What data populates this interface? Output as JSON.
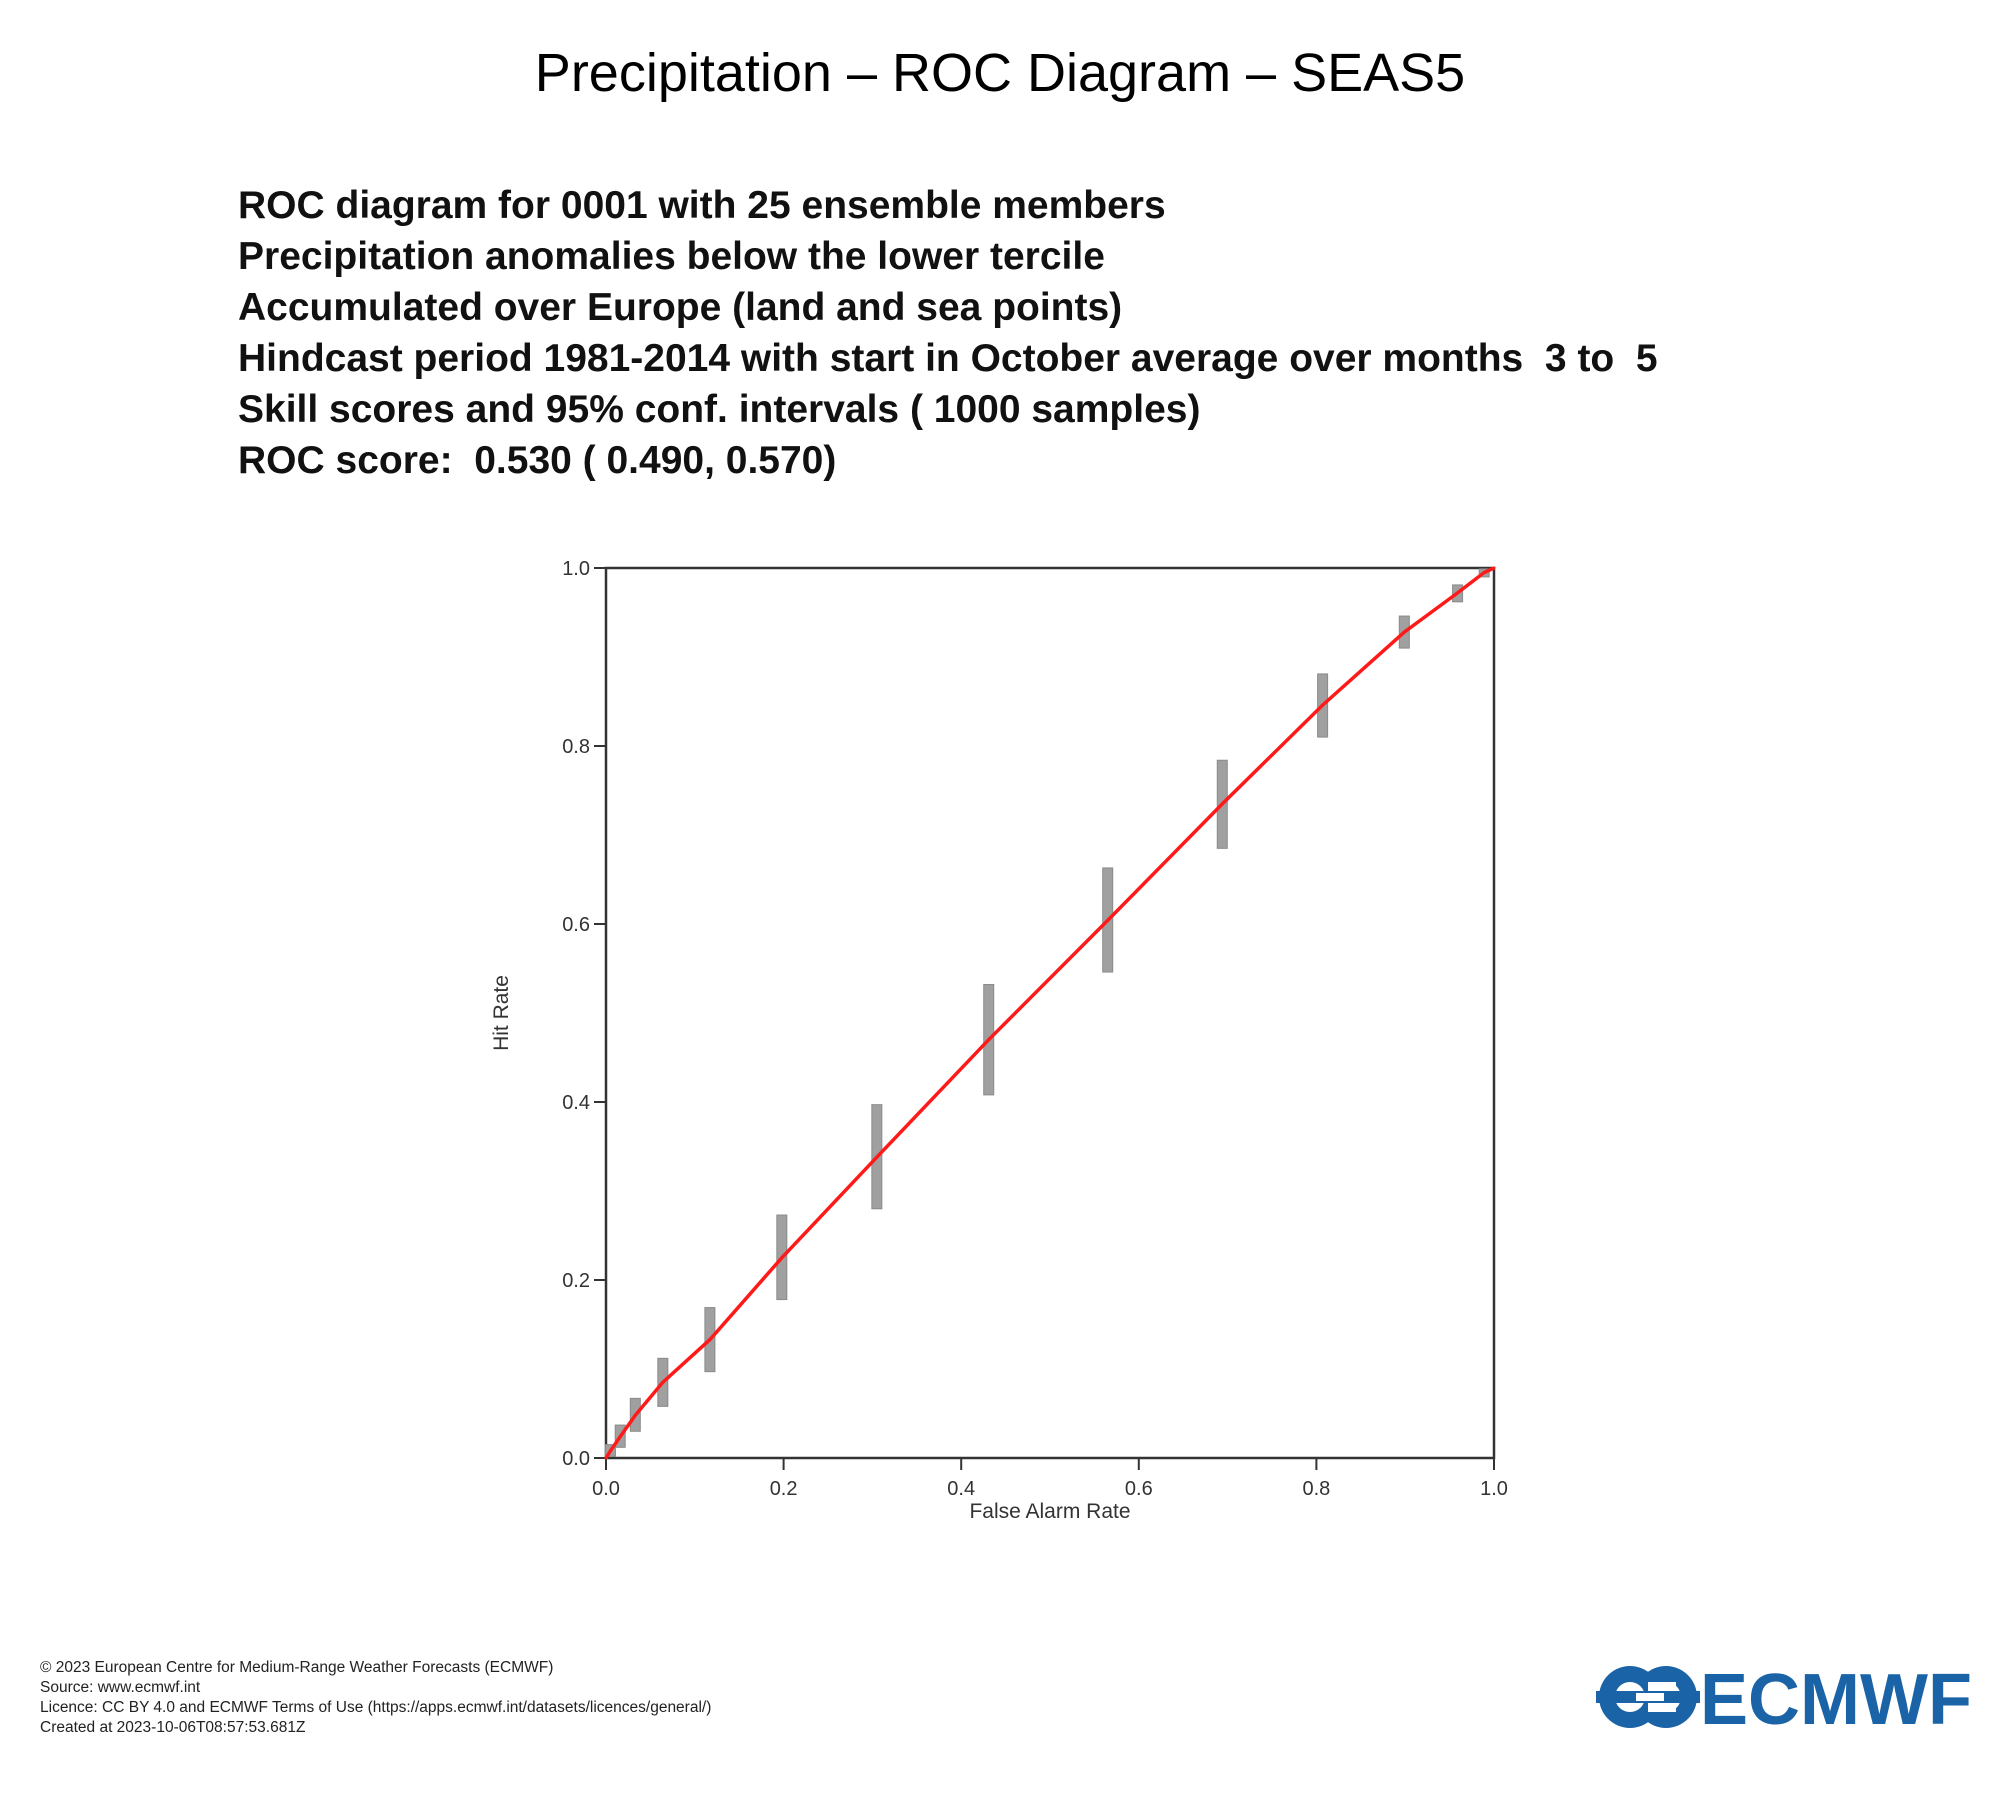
{
  "title": "Precipitation – ROC Diagram – SEAS5",
  "info_lines": [
    "ROC diagram for 0001 with 25 ensemble members",
    "Precipitation anomalies below the lower tercile",
    "Accumulated over Europe (land and sea points)",
    "Hindcast period 1981-2014 with start in October average over months  3 to  5",
    "Skill scores and 95% conf. intervals ( 1000 samples)",
    "ROC score:  0.530 ( 0.490, 0.570)"
  ],
  "chart_data": {
    "type": "line",
    "xlabel": "False Alarm Rate",
    "ylabel": "Hit Rate",
    "xlim": [
      0,
      1
    ],
    "ylim": [
      0,
      1
    ],
    "x_ticks": [
      "0.0",
      "0.2",
      "0.4",
      "0.6",
      "0.8",
      "1.0"
    ],
    "y_ticks": [
      "0.0",
      "0.2",
      "0.4",
      "0.6",
      "0.8",
      "1.0"
    ],
    "grid": false,
    "line_color": "#ff1a1a",
    "errorbar_color": "#a0a0a0",
    "points": [
      {
        "x": 0.0,
        "y": 0.0,
        "y_low": 0.0,
        "y_high": 0.0
      },
      {
        "x": 0.005,
        "y": 0.008,
        "y_low": 0.002,
        "y_high": 0.015
      },
      {
        "x": 0.016,
        "y": 0.024,
        "y_low": 0.012,
        "y_high": 0.037
      },
      {
        "x": 0.033,
        "y": 0.048,
        "y_low": 0.03,
        "y_high": 0.067
      },
      {
        "x": 0.064,
        "y": 0.085,
        "y_low": 0.058,
        "y_high": 0.112
      },
      {
        "x": 0.117,
        "y": 0.133,
        "y_low": 0.097,
        "y_high": 0.169
      },
      {
        "x": 0.198,
        "y": 0.225,
        "y_low": 0.178,
        "y_high": 0.273
      },
      {
        "x": 0.305,
        "y": 0.338,
        "y_low": 0.28,
        "y_high": 0.397
      },
      {
        "x": 0.431,
        "y": 0.47,
        "y_low": 0.408,
        "y_high": 0.532
      },
      {
        "x": 0.565,
        "y": 0.604,
        "y_low": 0.546,
        "y_high": 0.663
      },
      {
        "x": 0.694,
        "y": 0.735,
        "y_low": 0.685,
        "y_high": 0.784
      },
      {
        "x": 0.807,
        "y": 0.846,
        "y_low": 0.81,
        "y_high": 0.881
      },
      {
        "x": 0.899,
        "y": 0.928,
        "y_low": 0.91,
        "y_high": 0.946
      },
      {
        "x": 0.959,
        "y": 0.972,
        "y_low": 0.962,
        "y_high": 0.981
      },
      {
        "x": 0.989,
        "y": 0.995,
        "y_low": 0.99,
        "y_high": 0.999
      },
      {
        "x": 1.0,
        "y": 1.0,
        "y_low": 1.0,
        "y_high": 1.0
      }
    ]
  },
  "footer_lines": [
    "© 2023 European Centre for Medium-Range Weather Forecasts (ECMWF)",
    "Source: www.ecmwf.int",
    "Licence: CC BY 4.0 and ECMWF Terms of Use (https://apps.ecmwf.int/datasets/licences/general/)",
    "Created at 2023-10-06T08:57:53.681Z"
  ],
  "logo": {
    "text": "ECMWF",
    "color": "#1a63a6",
    "icon": "ecmwf-logo-icon"
  }
}
